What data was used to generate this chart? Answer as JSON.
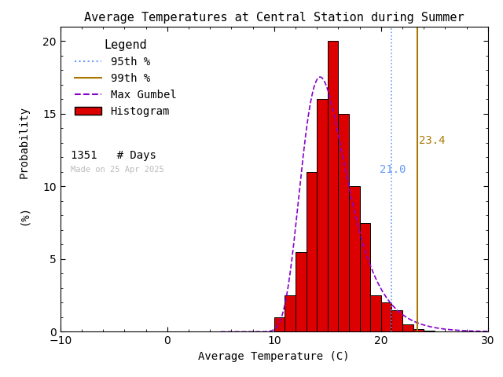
{
  "title": "Average Temperatures at Central Station during Summer",
  "xlabel": "Average Temperature (C)",
  "ylabel1": "Probability",
  "ylabel2": "(%)",
  "xlim": [
    -10,
    30
  ],
  "ylim": [
    0,
    21
  ],
  "yticks": [
    0,
    5,
    10,
    15,
    20
  ],
  "xticks": [
    -10,
    0,
    10,
    20,
    30
  ],
  "bg_color": "#ffffff",
  "bar_color": "#dd0000",
  "bar_edge_color": "#000000",
  "gumbel_color": "#8800cc",
  "gumbel_linestyle": "--",
  "p95_color": "#6699ff",
  "p99_color": "#aa7700",
  "p95_value": 21.0,
  "p99_value": 23.4,
  "n_days": 1351,
  "made_on": "Made on 25 Apr 2025",
  "bin_edges": [
    9,
    10,
    11,
    12,
    13,
    14,
    15,
    16,
    17,
    18,
    19,
    20,
    21,
    22,
    23,
    24,
    25
  ],
  "bin_probs": [
    0.0,
    1.0,
    2.5,
    5.5,
    11.0,
    16.0,
    20.0,
    15.0,
    10.0,
    7.5,
    2.5,
    2.0,
    1.5,
    0.5,
    0.2,
    0.1
  ],
  "gumbel_mu": 14.3,
  "gumbel_beta": 2.1,
  "title_fontsize": 11,
  "axis_fontsize": 10,
  "tick_fontsize": 10,
  "legend_fontsize": 10,
  "legend_title_fontsize": 11
}
